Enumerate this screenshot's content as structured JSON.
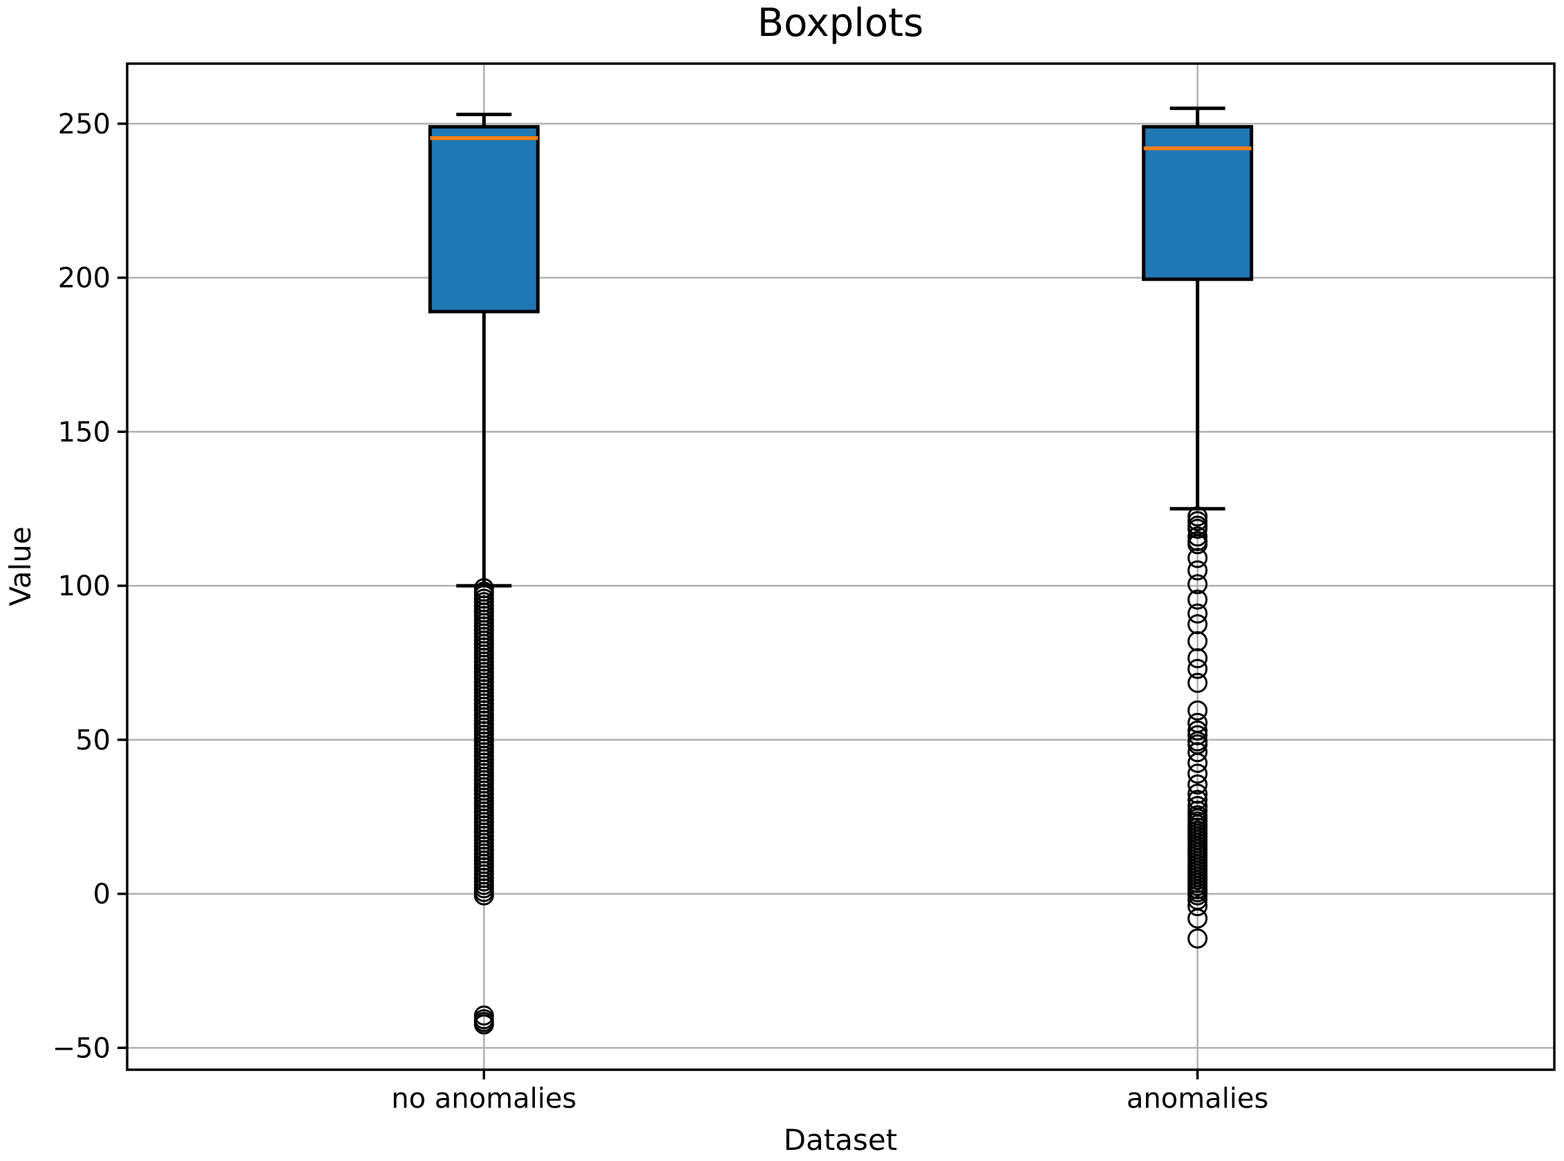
{
  "chart_data": {
    "type": "boxplot",
    "title": "Boxplots",
    "xlabel": "Dataset",
    "ylabel": "Value",
    "categories": [
      "no anomalies",
      "anomalies"
    ],
    "positions": [
      1,
      2
    ],
    "xlim": [
      0.5,
      2.5
    ],
    "ylim": [
      -57.1,
      269.5
    ],
    "yticks": [
      -50,
      0,
      50,
      100,
      150,
      200,
      250
    ],
    "grid": true,
    "colors": {
      "box_fill": "#1f77b4",
      "median": "#ff7f0e",
      "line": "#000000",
      "grid": "#b0b0b0",
      "background": "#ffffff"
    },
    "series": [
      {
        "name": "no anomalies",
        "position": 1,
        "whisker_low": 100,
        "q1": 189,
        "median": 245.3,
        "q3": 249,
        "whisker_high": 253,
        "outliers": [
          99.2,
          98.1,
          97,
          95.8,
          94.7,
          93.6,
          92.4,
          91.3,
          90.2,
          89,
          87.9,
          86.8,
          85.6,
          84.5,
          83.4,
          82.2,
          81.1,
          80,
          78.8,
          77.7,
          76.6,
          75.4,
          74.3,
          73.2,
          72,
          70.9,
          69.8,
          68.6,
          67.5,
          66.4,
          65.2,
          64.1,
          63,
          61.8,
          60.7,
          59.6,
          58.4,
          57.3,
          56.2,
          55,
          53.9,
          52.8,
          51.6,
          50.5,
          49.4,
          48.2,
          47.1,
          46,
          44.8,
          43.7,
          42.6,
          41.4,
          40.3,
          39.2,
          38,
          36.9,
          35.8,
          34.6,
          33.5,
          32.4,
          31.2,
          30.1,
          29,
          27.8,
          26.7,
          25.6,
          24.4,
          23.3,
          22.2,
          21,
          19.9,
          18.8,
          17.6,
          16.5,
          15.4,
          14.2,
          13.1,
          12,
          10.8,
          9.7,
          8.6,
          7.4,
          6.3,
          5.2,
          4,
          2.9,
          1.8,
          0.6,
          -0.5,
          -39.5,
          -40.7,
          -41.6,
          -42.4
        ]
      },
      {
        "name": "anomalies",
        "position": 2,
        "whisker_low": 125,
        "q1": 199.5,
        "median": 242,
        "q3": 249,
        "whisker_high": 255,
        "outliers": [
          122.5,
          121,
          119.5,
          118.5,
          116,
          114.5,
          113.5,
          109,
          105,
          100.5,
          95.5,
          91,
          87.5,
          82,
          76.5,
          73,
          68.5,
          59.5,
          55.5,
          53,
          51.5,
          49.5,
          48.5,
          46,
          42.5,
          39,
          35.5,
          32.5,
          30.5,
          28.5,
          27,
          25.5,
          24.5,
          23.5,
          22.5,
          21.5,
          20.5,
          19.5,
          18.5,
          17.5,
          16.5,
          15.5,
          14.5,
          13.5,
          12.5,
          11.5,
          10.5,
          9.5,
          8.5,
          7.5,
          6.5,
          5.5,
          4.5,
          3.5,
          2.5,
          1.5,
          0.5,
          -0.5,
          -2,
          -4,
          -8,
          -14.5
        ]
      }
    ]
  }
}
